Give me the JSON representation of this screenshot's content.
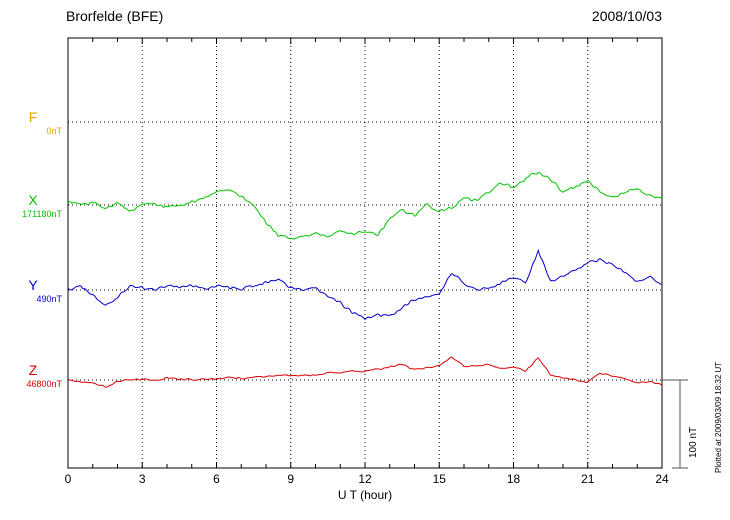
{
  "header": {
    "station_title": "Brorfelde (BFE)",
    "date": "2008/10/03"
  },
  "x_axis": {
    "label": "U T (hour)",
    "tick_values": [
      0,
      3,
      6,
      9,
      12,
      15,
      18,
      21,
      24
    ],
    "minor_tick_step_hours": 1,
    "min": 0,
    "max": 24
  },
  "scale_bar": {
    "label": "100 nT",
    "span_nT": 100
  },
  "annotation": {
    "plotted_at": "Plotted at 2009/03/09 18:32 UT"
  },
  "components": [
    {
      "letter": "F",
      "baseline_label": "0nT",
      "color": "#E8A400"
    },
    {
      "letter": "X",
      "baseline_label": "171180nT",
      "color": "#00C400"
    },
    {
      "letter": "Y",
      "baseline_label": "490nT",
      "color": "#0000D0"
    },
    {
      "letter": "Z",
      "baseline_label": "46800nT",
      "color": "#DC0000"
    }
  ],
  "chart_data": {
    "type": "line",
    "title": "Brorfelde (BFE) magnetogram 2008/10/03",
    "xlabel": "U T (hour)",
    "x_range": [
      0,
      24
    ],
    "x_step_hours": 0.5,
    "grid": "dotted vertical every 3 h, dotted horizontal baseline per component",
    "scale_bar_nT": 100,
    "series": [
      {
        "name": "F",
        "color": "#E8A400",
        "baseline_nT": 0,
        "noise_nT": 0,
        "values": null
      },
      {
        "name": "X",
        "color": "#00C400",
        "baseline_nT": 171180,
        "noise_nT": 3,
        "values": [
          5,
          0,
          3,
          -5,
          2,
          -8,
          0,
          2,
          -2,
          0,
          3,
          8,
          15,
          18,
          10,
          0,
          -20,
          -35,
          -38,
          -35,
          -32,
          -35,
          -30,
          -33,
          -30,
          -35,
          -15,
          -5,
          -12,
          0,
          -8,
          -3,
          8,
          5,
          15,
          25,
          20,
          30,
          38,
          30,
          15,
          20,
          28,
          15,
          8,
          15,
          18,
          10,
          8
        ]
      },
      {
        "name": "Y",
        "color": "#0000D0",
        "baseline_nT": 490,
        "noise_nT": 3,
        "values": [
          0,
          5,
          -5,
          -18,
          -8,
          5,
          3,
          0,
          5,
          3,
          5,
          2,
          5,
          3,
          2,
          5,
          8,
          12,
          3,
          0,
          2,
          -8,
          -15,
          -25,
          -32,
          -28,
          -30,
          -20,
          -10,
          -8,
          -5,
          20,
          8,
          0,
          2,
          8,
          15,
          8,
          45,
          10,
          15,
          22,
          30,
          35,
          28,
          20,
          10,
          15,
          5
        ]
      },
      {
        "name": "Z",
        "color": "#DC0000",
        "baseline_nT": 46800,
        "noise_nT": 1.8,
        "values": [
          0,
          -2,
          -3,
          -8,
          -2,
          0,
          1,
          0,
          2,
          1,
          0,
          2,
          1,
          3,
          2,
          3,
          4,
          5,
          6,
          5,
          6,
          8,
          8,
          10,
          10,
          12,
          14,
          18,
          12,
          14,
          16,
          26,
          15,
          16,
          18,
          13,
          15,
          10,
          25,
          6,
          2,
          0,
          -2,
          8,
          4,
          1,
          -3,
          -2,
          -5
        ]
      }
    ]
  }
}
